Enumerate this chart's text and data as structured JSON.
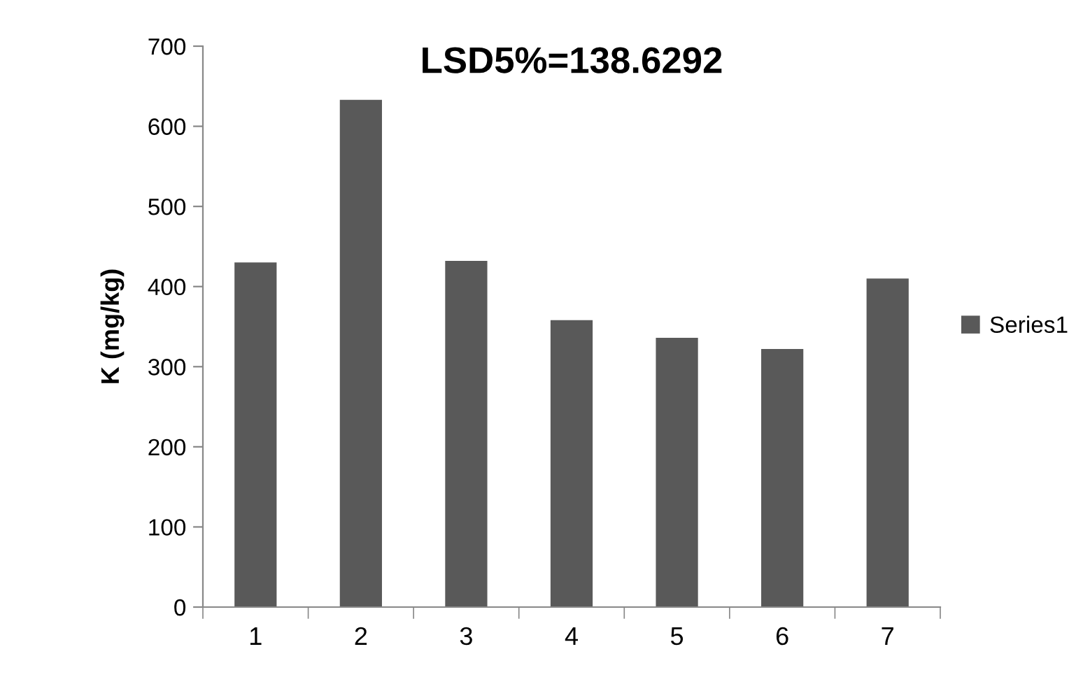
{
  "chart_data": {
    "type": "bar",
    "title": "LSD5%=138.6292",
    "ylabel": "K (mg/kg)",
    "categories": [
      "1",
      "2",
      "3",
      "4",
      "5",
      "6",
      "7"
    ],
    "series": [
      {
        "name": "Series1",
        "color": "#595959",
        "values": [
          430,
          633,
          432,
          358,
          336,
          322,
          410
        ]
      }
    ],
    "ylim": [
      0,
      700
    ],
    "yticks": [
      0,
      100,
      200,
      300,
      400,
      500,
      600,
      700
    ],
    "grid": false,
    "legend": "right"
  }
}
